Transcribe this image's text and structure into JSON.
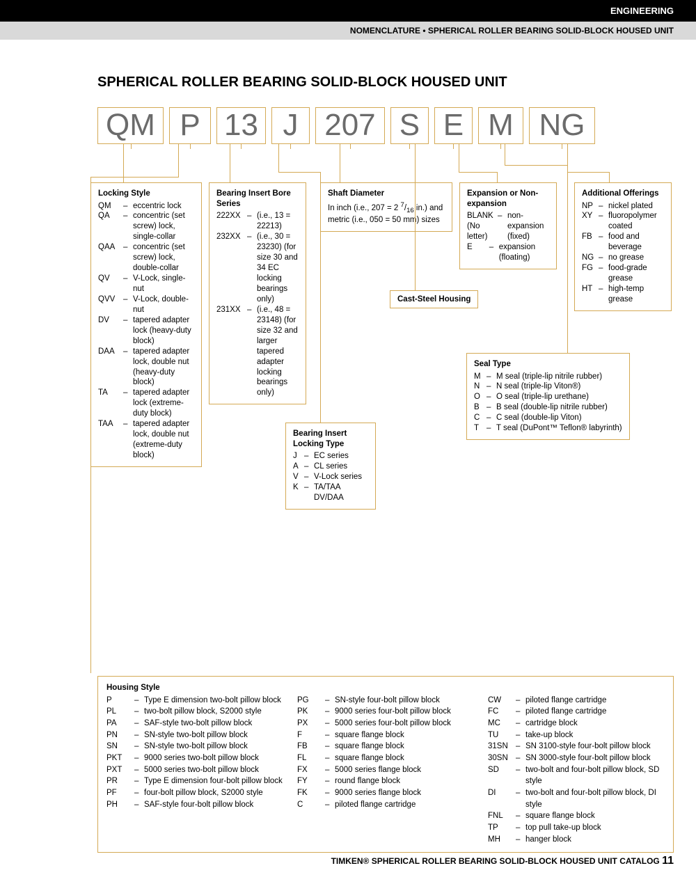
{
  "header": {
    "black": "ENGINEERING",
    "gray": "NOMENCLATURE • SPHERICAL ROLLER BEARING SOLID-BLOCK HOUSED UNIT"
  },
  "title": "SPHERICAL ROLLER BEARING SOLID-BLOCK HOUSED UNIT",
  "code": [
    "QM",
    "P",
    "13",
    "J",
    "207",
    "S",
    "E",
    "M",
    "NG"
  ],
  "locking_style": {
    "title": "Locking Style",
    "items": [
      {
        "c": "QM",
        "d": "eccentric lock"
      },
      {
        "c": "QA",
        "d": "concentric (set screw) lock, single-collar"
      },
      {
        "c": "QAA",
        "d": "concentric (set screw) lock, double-collar"
      },
      {
        "c": "QV",
        "d": "V-Lock, single-nut"
      },
      {
        "c": "QVV",
        "d": "V-Lock, double-nut"
      },
      {
        "c": "DV",
        "d": "tapered adapter lock (heavy-duty block)"
      },
      {
        "c": "DAA",
        "d": "tapered adapter lock, double nut (heavy-duty block)"
      },
      {
        "c": "TA",
        "d": "tapered adapter lock (extreme-duty block)"
      },
      {
        "c": "TAA",
        "d": "tapered adapter lock, double nut (extreme-duty block)"
      }
    ]
  },
  "bore_series": {
    "title": "Bearing Insert Bore Series",
    "items": [
      {
        "c": "222XX",
        "d": "(i.e., 13 = 22213)"
      },
      {
        "c": "232XX",
        "d": "(i.e., 30 = 23230) (for size 30 and 34 EC locking bearings only)"
      },
      {
        "c": "231XX",
        "d": "(i.e., 48 = 23148) (for size 32 and larger tapered adapter locking bearings only)"
      }
    ]
  },
  "locking_type": {
    "title": "Bearing Insert Locking Type",
    "items": [
      {
        "c": "J",
        "d": "EC series"
      },
      {
        "c": "A",
        "d": "CL series"
      },
      {
        "c": "V",
        "d": "V-Lock series"
      },
      {
        "c": "K",
        "d": "TA/TAA DV/DAA"
      }
    ]
  },
  "shaft": {
    "title": "Shaft Diameter",
    "text1": "In inch (i.e., 207 = 2 ",
    "frac_n": "7",
    "frac_d": "16",
    "text2": " in.) and metric (i.e., 050 = 50 mm) sizes"
  },
  "cast": "Cast-Steel Housing",
  "expansion": {
    "title": "Expansion or Non-expansion",
    "items": [
      {
        "c": "BLANK (No letter)",
        "d": "non-expansion (fixed)"
      },
      {
        "c": "E",
        "d": "expansion (floating)"
      }
    ]
  },
  "seal": {
    "title": "Seal Type",
    "items": [
      {
        "c": "M",
        "d": "M seal (triple-lip nitrile rubber)"
      },
      {
        "c": "N",
        "d": "N seal (triple-lip Viton®)"
      },
      {
        "c": "O",
        "d": "O seal (triple-lip urethane)"
      },
      {
        "c": "B",
        "d": "B seal (double-lip nitrile rubber)"
      },
      {
        "c": "C",
        "d": "C seal (double-lip Viton)"
      },
      {
        "c": "T",
        "d": "T seal (DuPont™ Teflon® labyrinth)"
      }
    ]
  },
  "additional": {
    "title": "Additional Offerings",
    "items": [
      {
        "c": "NP",
        "d": "nickel plated"
      },
      {
        "c": "XY",
        "d": "fluoropolymer coated"
      },
      {
        "c": "FB",
        "d": "food and beverage"
      },
      {
        "c": "NG",
        "d": "no grease"
      },
      {
        "c": "FG",
        "d": "food-grade grease"
      },
      {
        "c": "HT",
        "d": "high-temp grease"
      }
    ]
  },
  "housing": {
    "title": "Housing Style",
    "col1": [
      {
        "c": "P",
        "d": "Type E dimension two-bolt pillow block"
      },
      {
        "c": "PL",
        "d": "two-bolt pillow block, S2000 style"
      },
      {
        "c": "PA",
        "d": "SAF-style two-bolt pillow block"
      },
      {
        "c": "PN",
        "d": "SN-style two-bolt pillow block"
      },
      {
        "c": "SN",
        "d": "SN-style two-bolt pillow block"
      },
      {
        "c": "PKT",
        "d": "9000 series two-bolt pillow block"
      },
      {
        "c": "PXT",
        "d": "5000 series two-bolt pillow block"
      },
      {
        "c": "PR",
        "d": "Type E dimension four-bolt pillow block"
      },
      {
        "c": "PF",
        "d": "four-bolt pillow block, S2000 style"
      },
      {
        "c": "PH",
        "d": "SAF-style four-bolt pillow block"
      }
    ],
    "col2": [
      {
        "c": "PG",
        "d": "SN-style four-bolt pillow block"
      },
      {
        "c": "PK",
        "d": "9000 series four-bolt pillow block"
      },
      {
        "c": "PX",
        "d": "5000 series four-bolt pillow block"
      },
      {
        "c": "F",
        "d": "square flange block"
      },
      {
        "c": "FB",
        "d": "square flange block"
      },
      {
        "c": "FL",
        "d": "square flange block"
      },
      {
        "c": "FX",
        "d": "5000 series flange block"
      },
      {
        "c": "FY",
        "d": "round flange block"
      },
      {
        "c": "FK",
        "d": "9000 series flange block"
      },
      {
        "c": "C",
        "d": "piloted flange cartridge"
      }
    ],
    "col3": [
      {
        "c": "CW",
        "d": "piloted flange cartridge"
      },
      {
        "c": "FC",
        "d": "piloted flange cartridge"
      },
      {
        "c": "MC",
        "d": "cartridge block"
      },
      {
        "c": "TU",
        "d": "take-up block"
      },
      {
        "c": "31SN",
        "d": "SN 3100-style four-bolt pillow block"
      },
      {
        "c": "30SN",
        "d": "SN 3000-style four-bolt pillow block"
      },
      {
        "c": "SD",
        "d": "two-bolt and four-bolt pillow block, SD style"
      },
      {
        "c": "DI",
        "d": "two-bolt and four-bolt pillow block, DI style"
      },
      {
        "c": "FNL",
        "d": "square flange block"
      },
      {
        "c": "TP",
        "d": "top pull take-up block"
      },
      {
        "c": "MH",
        "d": "hanger block"
      }
    ]
  },
  "footer": {
    "brand": "TIMKEN®",
    "text": " SPHERICAL ROLLER BEARING SOLID-BLOCK HOUSED UNIT CATALOG ",
    "page": "11"
  },
  "colors": {
    "border": "#d4a954",
    "code_text": "#6b6b6b"
  }
}
